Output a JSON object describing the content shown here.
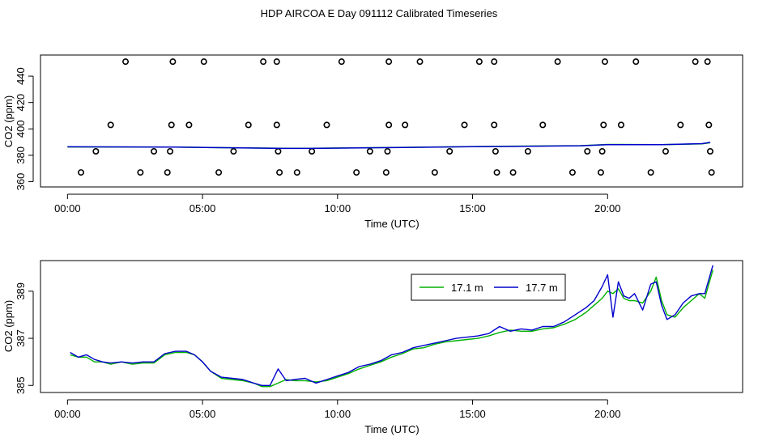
{
  "title": "HDP AIRCOA E  Day 091112  Calibrated Timeseries",
  "colors": {
    "green": "#00b000",
    "blue": "#0000cc",
    "axis": "#000000"
  },
  "chart_data": [
    {
      "type": "scatter+line",
      "xlabel": "Time (UTC)",
      "ylabel": "CO2 (ppm)",
      "x_unit": "hours",
      "x_ticks": [
        {
          "v": 0,
          "label": "00:00"
        },
        {
          "v": 5,
          "label": "05:00"
        },
        {
          "v": 10,
          "label": "10:00"
        },
        {
          "v": 15,
          "label": "15:00"
        },
        {
          "v": 20,
          "label": "20:00"
        }
      ],
      "y_ticks": [
        {
          "v": 360,
          "label": "360"
        },
        {
          "v": 380,
          "label": "380"
        },
        {
          "v": 400,
          "label": "400"
        },
        {
          "v": 420,
          "label": "420"
        },
        {
          "v": 440,
          "label": "440"
        }
      ],
      "xlim": [
        -1,
        25
      ],
      "ylim": [
        356,
        456
      ],
      "calibration_points": [
        [
          0.5,
          367
        ],
        [
          1.05,
          383
        ],
        [
          1.6,
          403
        ],
        [
          2.15,
          451
        ],
        [
          2.7,
          367
        ],
        [
          3.2,
          383
        ],
        [
          3.7,
          367
        ],
        [
          3.8,
          383
        ],
        [
          3.85,
          403
        ],
        [
          3.9,
          451
        ],
        [
          4.5,
          403
        ],
        [
          5.05,
          451
        ],
        [
          5.6,
          367
        ],
        [
          6.15,
          383
        ],
        [
          6.7,
          403
        ],
        [
          7.25,
          451
        ],
        [
          7.75,
          403
        ],
        [
          7.8,
          383
        ],
        [
          7.85,
          367
        ],
        [
          7.75,
          451
        ],
        [
          8.5,
          367
        ],
        [
          9.05,
          383
        ],
        [
          9.6,
          403
        ],
        [
          10.15,
          451
        ],
        [
          10.7,
          367
        ],
        [
          11.2,
          383
        ],
        [
          11.8,
          367
        ],
        [
          11.85,
          383
        ],
        [
          11.9,
          403
        ],
        [
          11.9,
          451
        ],
        [
          12.5,
          403
        ],
        [
          13.05,
          451
        ],
        [
          13.6,
          367
        ],
        [
          14.15,
          383
        ],
        [
          14.7,
          403
        ],
        [
          15.25,
          451
        ],
        [
          15.8,
          403
        ],
        [
          15.85,
          383
        ],
        [
          15.9,
          367
        ],
        [
          15.8,
          451
        ],
        [
          16.5,
          367
        ],
        [
          17.05,
          383
        ],
        [
          17.6,
          403
        ],
        [
          18.15,
          451
        ],
        [
          18.7,
          367
        ],
        [
          19.25,
          383
        ],
        [
          19.75,
          367
        ],
        [
          19.8,
          383
        ],
        [
          19.85,
          403
        ],
        [
          19.9,
          451
        ],
        [
          20.5,
          403
        ],
        [
          21.05,
          451
        ],
        [
          21.6,
          367
        ],
        [
          22.15,
          383
        ],
        [
          22.7,
          403
        ],
        [
          23.25,
          451
        ],
        [
          23.7,
          451
        ],
        [
          23.75,
          403
        ],
        [
          23.8,
          383
        ],
        [
          23.85,
          367
        ]
      ],
      "series": [
        {
          "name": "17.1 m",
          "color": "#00b000",
          "values": [
            [
              0,
              386.3
            ],
            [
              4,
              386.2
            ],
            [
              8,
              385.3
            ],
            [
              9,
              385.3
            ],
            [
              12,
              385.9
            ],
            [
              15,
              386.6
            ],
            [
              19,
              387.3
            ],
            [
              20,
              388.2
            ],
            [
              22,
              388.1
            ],
            [
              23.5,
              388.7
            ],
            [
              23.8,
              389.5
            ]
          ]
        },
        {
          "name": "17.7 m",
          "color": "#0000cc",
          "values": [
            [
              0,
              386.4
            ],
            [
              4,
              386.2
            ],
            [
              8,
              385.2
            ],
            [
              9,
              385.2
            ],
            [
              12,
              385.8
            ],
            [
              15,
              386.5
            ],
            [
              19,
              387.2
            ],
            [
              20,
              388.0
            ],
            [
              22,
              388.1
            ],
            [
              23.5,
              388.8
            ],
            [
              23.8,
              389.8
            ]
          ]
        }
      ]
    },
    {
      "type": "line",
      "xlabel": "Time (UTC)",
      "ylabel": "CO2 (ppm)",
      "x_unit": "hours",
      "x_ticks": [
        {
          "v": 0,
          "label": "00:00"
        },
        {
          "v": 5,
          "label": "05:00"
        },
        {
          "v": 10,
          "label": "10:00"
        },
        {
          "v": 15,
          "label": "15:00"
        },
        {
          "v": 20,
          "label": "20:00"
        }
      ],
      "y_ticks": [
        {
          "v": 385,
          "label": "385"
        },
        {
          "v": 387,
          "label": "387"
        },
        {
          "v": 389,
          "label": "389"
        }
      ],
      "xlim": [
        -1,
        25
      ],
      "ylim": [
        384.7,
        390.3
      ],
      "legend": {
        "position": "top-right",
        "entries": [
          "17.1 m",
          "17.7 m"
        ]
      },
      "series": [
        {
          "name": "17.1 m",
          "color": "#00b000",
          "values": [
            [
              0.1,
              386.3
            ],
            [
              0.4,
              386.2
            ],
            [
              0.7,
              386.2
            ],
            [
              1.0,
              386.0
            ],
            [
              1.3,
              386.0
            ],
            [
              1.6,
              385.9
            ],
            [
              2.0,
              386.0
            ],
            [
              2.4,
              385.9
            ],
            [
              2.8,
              385.95
            ],
            [
              3.2,
              385.95
            ],
            [
              3.6,
              386.3
            ],
            [
              4.0,
              386.4
            ],
            [
              4.4,
              386.4
            ],
            [
              4.7,
              386.3
            ],
            [
              5.0,
              386.0
            ],
            [
              5.3,
              385.6
            ],
            [
              5.7,
              385.3
            ],
            [
              6.1,
              385.25
            ],
            [
              6.5,
              385.2
            ],
            [
              6.9,
              385.1
            ],
            [
              7.2,
              384.95
            ],
            [
              7.5,
              384.95
            ],
            [
              7.8,
              385.1
            ],
            [
              8.1,
              385.25
            ],
            [
              8.4,
              385.2
            ],
            [
              8.8,
              385.2
            ],
            [
              9.2,
              385.15
            ],
            [
              9.6,
              385.2
            ],
            [
              10.0,
              385.35
            ],
            [
              10.4,
              385.5
            ],
            [
              10.8,
              385.7
            ],
            [
              11.2,
              385.85
            ],
            [
              11.6,
              386.0
            ],
            [
              12.0,
              386.2
            ],
            [
              12.4,
              386.35
            ],
            [
              12.8,
              386.55
            ],
            [
              13.2,
              386.6
            ],
            [
              13.6,
              386.75
            ],
            [
              14.0,
              386.85
            ],
            [
              14.4,
              386.9
            ],
            [
              14.8,
              386.95
            ],
            [
              15.2,
              387.0
            ],
            [
              15.6,
              387.1
            ],
            [
              16.0,
              387.25
            ],
            [
              16.4,
              387.35
            ],
            [
              16.8,
              387.3
            ],
            [
              17.2,
              387.3
            ],
            [
              17.6,
              387.4
            ],
            [
              18.0,
              387.45
            ],
            [
              18.4,
              387.6
            ],
            [
              18.8,
              387.8
            ],
            [
              19.2,
              388.1
            ],
            [
              19.5,
              388.4
            ],
            [
              19.8,
              388.7
            ],
            [
              20.0,
              389.0
            ],
            [
              20.2,
              388.9
            ],
            [
              20.4,
              389.1
            ],
            [
              20.6,
              388.7
            ],
            [
              20.8,
              388.6
            ],
            [
              21.0,
              388.6
            ],
            [
              21.3,
              388.5
            ],
            [
              21.6,
              389.0
            ],
            [
              21.8,
              389.6
            ],
            [
              22.0,
              388.6
            ],
            [
              22.2,
              388.0
            ],
            [
              22.5,
              387.9
            ],
            [
              22.8,
              388.3
            ],
            [
              23.1,
              388.6
            ],
            [
              23.4,
              388.9
            ],
            [
              23.6,
              388.7
            ],
            [
              23.9,
              389.9
            ]
          ]
        },
        {
          "name": "17.7 m",
          "color": "#0000cc",
          "values": [
            [
              0.1,
              386.4
            ],
            [
              0.4,
              386.2
            ],
            [
              0.7,
              386.3
            ],
            [
              1.0,
              386.1
            ],
            [
              1.3,
              386.0
            ],
            [
              1.6,
              385.95
            ],
            [
              2.0,
              386.0
            ],
            [
              2.4,
              385.95
            ],
            [
              2.8,
              386.0
            ],
            [
              3.2,
              386.0
            ],
            [
              3.6,
              386.35
            ],
            [
              4.0,
              386.45
            ],
            [
              4.4,
              386.45
            ],
            [
              4.7,
              386.3
            ],
            [
              5.0,
              386.0
            ],
            [
              5.3,
              385.6
            ],
            [
              5.7,
              385.35
            ],
            [
              6.1,
              385.3
            ],
            [
              6.5,
              385.25
            ],
            [
              6.9,
              385.1
            ],
            [
              7.2,
              385.0
            ],
            [
              7.5,
              385.0
            ],
            [
              7.8,
              385.7
            ],
            [
              8.1,
              385.2
            ],
            [
              8.4,
              385.25
            ],
            [
              8.8,
              385.3
            ],
            [
              9.2,
              385.1
            ],
            [
              9.6,
              385.25
            ],
            [
              10.0,
              385.4
            ],
            [
              10.4,
              385.55
            ],
            [
              10.8,
              385.8
            ],
            [
              11.2,
              385.9
            ],
            [
              11.6,
              386.05
            ],
            [
              12.0,
              386.3
            ],
            [
              12.4,
              386.4
            ],
            [
              12.8,
              386.6
            ],
            [
              13.2,
              386.7
            ],
            [
              13.6,
              386.8
            ],
            [
              14.0,
              386.9
            ],
            [
              14.4,
              387.0
            ],
            [
              14.8,
              387.05
            ],
            [
              15.2,
              387.1
            ],
            [
              15.6,
              387.2
            ],
            [
              16.0,
              387.5
            ],
            [
              16.4,
              387.3
            ],
            [
              16.8,
              387.4
            ],
            [
              17.2,
              387.35
            ],
            [
              17.6,
              387.5
            ],
            [
              18.0,
              387.5
            ],
            [
              18.4,
              387.7
            ],
            [
              18.8,
              388.0
            ],
            [
              19.2,
              388.3
            ],
            [
              19.5,
              388.6
            ],
            [
              19.8,
              389.2
            ],
            [
              20.0,
              389.7
            ],
            [
              20.2,
              387.9
            ],
            [
              20.4,
              389.4
            ],
            [
              20.6,
              388.8
            ],
            [
              20.8,
              388.7
            ],
            [
              21.0,
              388.9
            ],
            [
              21.3,
              388.2
            ],
            [
              21.6,
              389.3
            ],
            [
              21.8,
              389.4
            ],
            [
              22.0,
              388.4
            ],
            [
              22.2,
              387.8
            ],
            [
              22.5,
              388.0
            ],
            [
              22.8,
              388.5
            ],
            [
              23.1,
              388.8
            ],
            [
              23.4,
              388.9
            ],
            [
              23.6,
              388.9
            ],
            [
              23.9,
              390.1
            ]
          ]
        }
      ]
    }
  ]
}
